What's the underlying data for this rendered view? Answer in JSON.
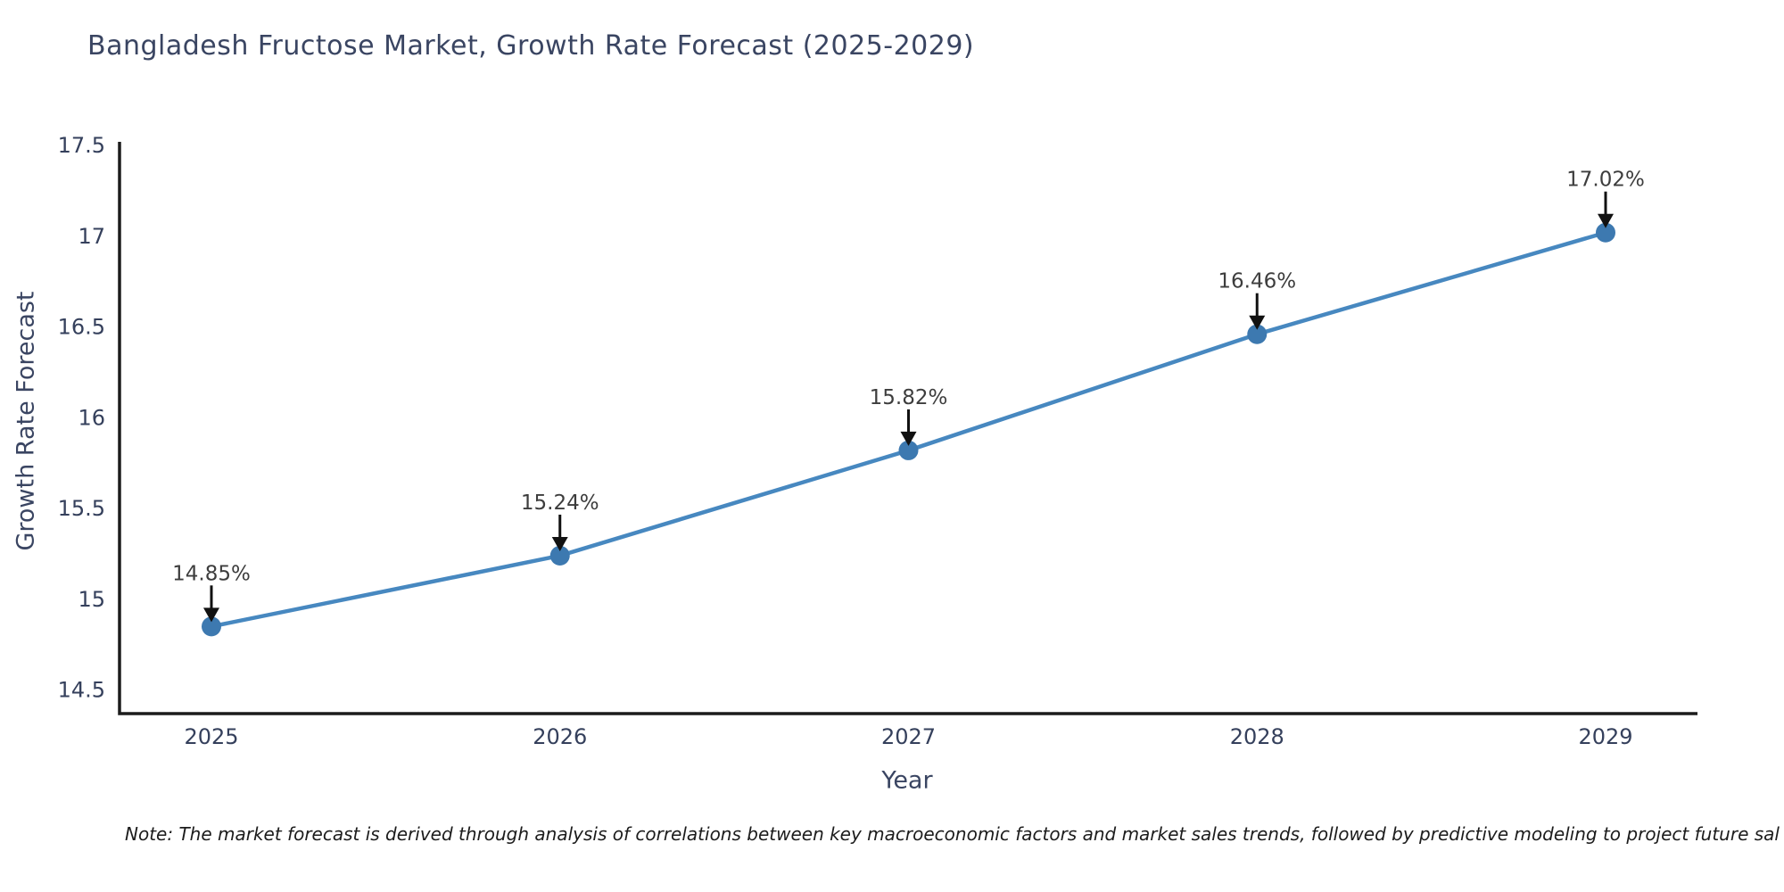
{
  "note": "Note: The market forecast is derived through analysis of correlations between key macroeconomic factors and market sales trends, followed by predictive modeling to project future sal",
  "chart_data": {
    "type": "line",
    "title": "Bangladesh Fructose Market, Growth Rate Forecast (2025-2029)",
    "xlabel": "Year",
    "ylabel": "Growth Rate Forecast",
    "categories": [
      "2025",
      "2026",
      "2027",
      "2028",
      "2029"
    ],
    "values": [
      14.85,
      15.24,
      15.82,
      16.46,
      17.02
    ],
    "point_labels": [
      "14.85%",
      "15.24%",
      "15.82%",
      "16.46%",
      "17.02%"
    ],
    "yticks": [
      14.5,
      15,
      15.5,
      16,
      16.5,
      17,
      17.5
    ],
    "ylim": [
      14.37,
      17.52
    ],
    "grid": false,
    "legend_position": "none",
    "annotation_style": "value label with downward arrow to marker",
    "line_color": "#4788c0",
    "marker_color": "#3d79b0",
    "axis_color": "#1c1c1c",
    "arrow_color": "#111111",
    "tick_color": "#35405c",
    "title_color": "#3a4562",
    "annotation_color": "#3d3d3d",
    "background_color": "#ffffff"
  }
}
